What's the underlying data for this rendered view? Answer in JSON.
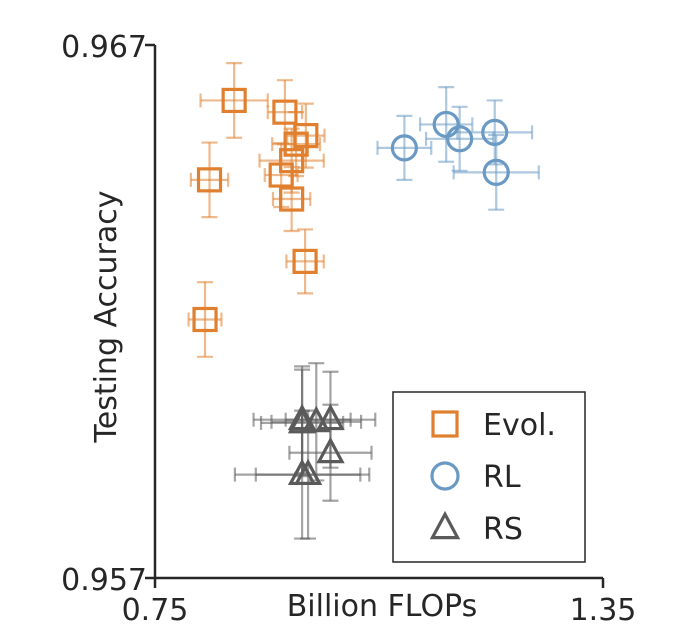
{
  "chart_data": {
    "type": "scatter",
    "xlabel": "Billion FLOPs",
    "ylabel": "Testing Accuracy",
    "xlim": [
      0.75,
      1.35
    ],
    "ylim": [
      0.957,
      0.967
    ],
    "x_tick_labels": [
      "0.75",
      "1.35"
    ],
    "y_tick_labels": [
      "0.957",
      "0.967"
    ],
    "grid": false,
    "legend_placement": "bottom-right",
    "series": [
      {
        "name": "Evol.",
        "marker": "square",
        "color": "#e07f2d",
        "points": [
          {
            "x": 0.823,
            "y": 0.96447,
            "xerr": 0.025,
            "yerr": 0.0007
          },
          {
            "x": 0.856,
            "y": 0.96596,
            "xerr": 0.045,
            "yerr": 0.0007
          },
          {
            "x": 0.919,
            "y": 0.96456,
            "xerr": 0.022,
            "yerr": 0.0006
          },
          {
            "x": 0.924,
            "y": 0.96574,
            "xerr": 0.023,
            "yerr": 0.0006
          },
          {
            "x": 0.933,
            "y": 0.96483,
            "xerr": 0.043,
            "yerr": 0.0006
          },
          {
            "x": 0.933,
            "y": 0.96411,
            "xerr": 0.025,
            "yerr": 0.0006
          },
          {
            "x": 0.817,
            "y": 0.96185,
            "xerr": 0.022,
            "yerr": 0.0007
          },
          {
            "x": 0.951,
            "y": 0.96294,
            "xerr": 0.025,
            "yerr": 0.0006
          },
          {
            "x": 0.939,
            "y": 0.96514,
            "xerr": 0.032,
            "yerr": 0.0006
          },
          {
            "x": 0.952,
            "y": 0.9653,
            "xerr": 0.025,
            "yerr": 0.0006
          }
        ]
      },
      {
        "name": "RL",
        "marker": "circle",
        "color": "#6a9ac4",
        "points": [
          {
            "x": 1.084,
            "y": 0.96507,
            "xerr": 0.036,
            "yerr": 0.0006
          },
          {
            "x": 1.14,
            "y": 0.96551,
            "xerr": 0.035,
            "yerr": 0.0007
          },
          {
            "x": 1.158,
            "y": 0.96524,
            "xerr": 0.045,
            "yerr": 0.0006
          },
          {
            "x": 1.205,
            "y": 0.96536,
            "xerr": 0.05,
            "yerr": 0.0006
          },
          {
            "x": 1.207,
            "y": 0.96461,
            "xerr": 0.057,
            "yerr": 0.0007
          }
        ]
      },
      {
        "name": "RS",
        "marker": "triangle",
        "color": "#5a5a5a",
        "points": [
          {
            "x": 0.947,
            "y": 0.95991,
            "xerr": 0.055,
            "yerr": 0.001
          },
          {
            "x": 0.966,
            "y": 0.95993,
            "xerr": 0.06,
            "yerr": 0.0011
          },
          {
            "x": 0.985,
            "y": 0.95997,
            "xerr": 0.06,
            "yerr": 0.0009
          },
          {
            "x": 0.985,
            "y": 0.95935,
            "xerr": 0.055,
            "yerr": 0.0009
          },
          {
            "x": 0.947,
            "y": 0.95894,
            "xerr": 0.09,
            "yerr": 0.0012
          },
          {
            "x": 0.955,
            "y": 0.95894,
            "xerr": 0.07,
            "yerr": 0.0012
          },
          {
            "x": 0.947,
            "y": 0.95997,
            "xerr": 0.065,
            "yerr": 0.001
          }
        ]
      }
    ]
  }
}
